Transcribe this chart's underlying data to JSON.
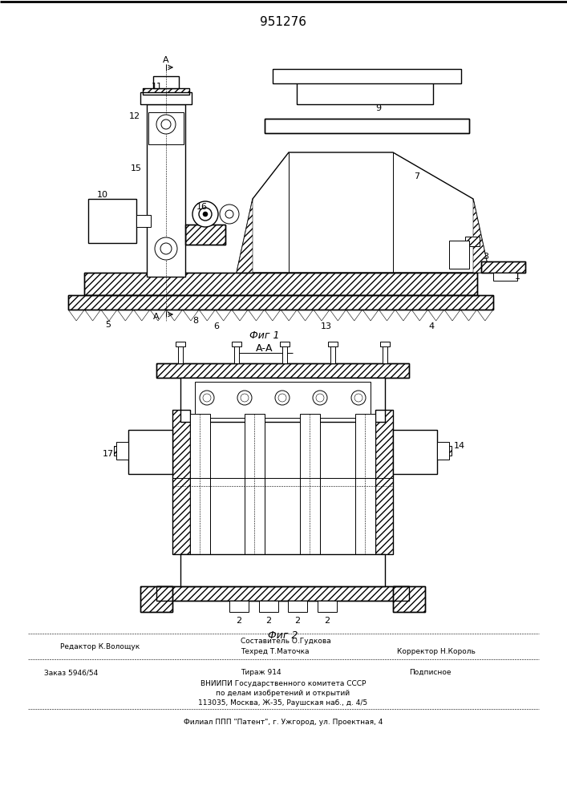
{
  "patent_number": "951276",
  "fig1_label": "Фиг 1",
  "fig2_label": "Фиг 2",
  "section_label": "А-А",
  "editor_line": "Редактор К.Волощук",
  "composer_line": "Составитель О.Гудкова",
  "techred_line": "Техред Т.Маточка",
  "corrector_line": "Корректор Н.Король",
  "order_line": "Заказ 5946/54",
  "tirazh_line": "Тираж 914",
  "podpisnoe_line": "Подписное",
  "vnipi_line1": "ВНИИПИ Государственного комитета СССР",
  "vnipi_line2": "по делам изобретений и открытий",
  "vnipi_line3": "113035, Москва, Ж-35, Раушская наб., д. 4/5",
  "filial_line": "Филиал ППП \"Патент\", г. Ужгород, ул. Проектная, 4",
  "bg_color": "#ffffff",
  "line_color": "#000000"
}
